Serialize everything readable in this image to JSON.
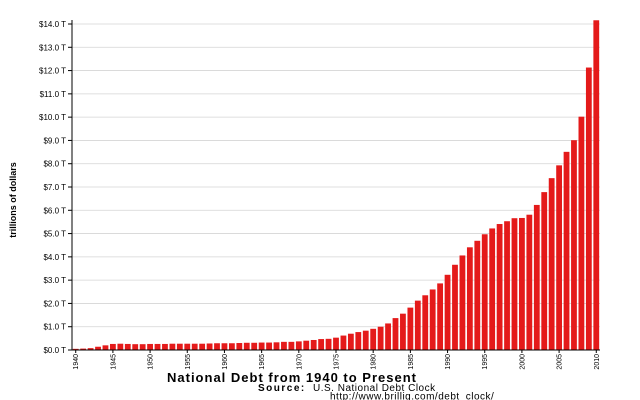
{
  "chart_data": {
    "type": "bar",
    "title": "National Debt from 1940 to Present",
    "ylabel": "trillions of dollars",
    "ytick_labels": [
      "$0.0 T",
      "$1.0 T",
      "$2.0 T",
      "$3.0 T",
      "$4.0 T",
      "$5.0 T",
      "$6.0 T",
      "$7.0 T",
      "$8.0 T",
      "$9.0 T",
      "$10.0 T",
      "$11.0 T",
      "$12.0 T",
      "$13.0 T",
      "$14.0 T"
    ],
    "xtick_labels": [
      "1940",
      "1945",
      "1950",
      "1955",
      "1960",
      "1965",
      "1970",
      "1975",
      "1980",
      "1985",
      "1990",
      "1995",
      "2000",
      "2005",
      "2010"
    ],
    "ylim": [
      0,
      14
    ],
    "bar_color": "#e41a1a",
    "source_label": "Source:",
    "source_text": "U.S. National Debt Clock",
    "source_url": "http://www.brillig.com/debt_clock/",
    "categories": [
      1940,
      1941,
      1942,
      1943,
      1944,
      1945,
      1946,
      1947,
      1948,
      1949,
      1950,
      1951,
      1952,
      1953,
      1954,
      1955,
      1956,
      1957,
      1958,
      1959,
      1960,
      1961,
      1962,
      1963,
      1964,
      1965,
      1966,
      1967,
      1968,
      1969,
      1970,
      1971,
      1972,
      1973,
      1974,
      1975,
      1976,
      1977,
      1978,
      1979,
      1980,
      1981,
      1982,
      1983,
      1984,
      1985,
      1986,
      1987,
      1988,
      1989,
      1990,
      1991,
      1992,
      1993,
      1994,
      1995,
      1996,
      1997,
      1998,
      1999,
      2000,
      2001,
      2002,
      2003,
      2004,
      2005,
      2006,
      2007,
      2008,
      2009,
      2010
    ],
    "values": [
      0.05,
      0.06,
      0.08,
      0.14,
      0.2,
      0.26,
      0.27,
      0.26,
      0.25,
      0.25,
      0.26,
      0.26,
      0.26,
      0.27,
      0.27,
      0.27,
      0.27,
      0.27,
      0.28,
      0.29,
      0.29,
      0.29,
      0.3,
      0.31,
      0.31,
      0.32,
      0.32,
      0.33,
      0.35,
      0.35,
      0.37,
      0.4,
      0.43,
      0.47,
      0.48,
      0.53,
      0.62,
      0.7,
      0.77,
      0.83,
      0.91,
      1.0,
      1.14,
      1.37,
      1.56,
      1.82,
      2.12,
      2.35,
      2.6,
      2.86,
      3.23,
      3.66,
      4.06,
      4.41,
      4.69,
      4.97,
      5.22,
      5.41,
      5.53,
      5.66,
      5.67,
      5.81,
      6.23,
      6.78,
      7.38,
      7.93,
      8.51,
      9.01,
      10.02,
      12.13,
      14.16
    ]
  }
}
